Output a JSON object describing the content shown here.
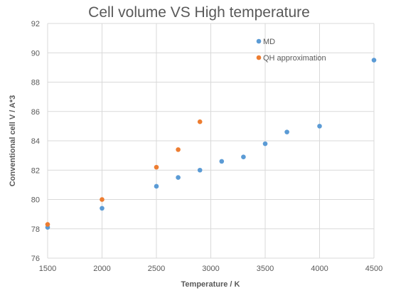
{
  "chart_data": {
    "type": "scatter",
    "title": "Cell volume VS High temperature",
    "xlabel": "Temperature / K",
    "ylabel": "Conventional  cell V / A*3",
    "xlim": [
      1500,
      4500
    ],
    "ylim": [
      76,
      92
    ],
    "x_ticks": [
      1500,
      2000,
      2500,
      3000,
      3500,
      4000,
      4500
    ],
    "y_ticks": [
      76,
      78,
      80,
      82,
      84,
      86,
      88,
      90,
      92
    ],
    "grid": "vertical and horizontal major gridlines",
    "legend_position": "top-right inside plot",
    "series": [
      {
        "name": "MD",
        "color": "#5b9bd5",
        "points": [
          {
            "x": 1500,
            "y": 78.1
          },
          {
            "x": 2000,
            "y": 79.4
          },
          {
            "x": 2500,
            "y": 80.9
          },
          {
            "x": 2700,
            "y": 81.5
          },
          {
            "x": 2900,
            "y": 82.0
          },
          {
            "x": 3100,
            "y": 82.6
          },
          {
            "x": 3300,
            "y": 82.9
          },
          {
            "x": 3500,
            "y": 83.8
          },
          {
            "x": 3700,
            "y": 84.6
          },
          {
            "x": 4000,
            "y": 85.0
          },
          {
            "x": 4500,
            "y": 89.5
          }
        ]
      },
      {
        "name": "QH approximation",
        "color": "#ed7d31",
        "points": [
          {
            "x": 1500,
            "y": 78.3
          },
          {
            "x": 2000,
            "y": 80.0
          },
          {
            "x": 2500,
            "y": 82.2
          },
          {
            "x": 2700,
            "y": 83.4
          },
          {
            "x": 2900,
            "y": 85.3
          }
        ]
      }
    ]
  }
}
